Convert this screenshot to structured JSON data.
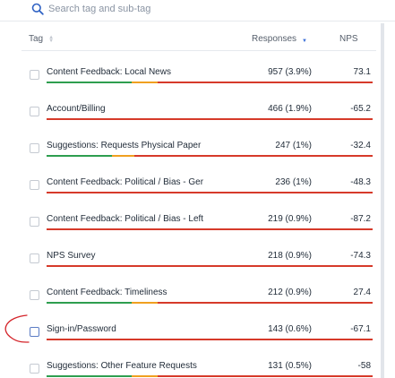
{
  "search": {
    "placeholder": "Search tag and sub-tag",
    "icon": "search-icon"
  },
  "table": {
    "columns": {
      "tag": "Tag",
      "responses": "Responses",
      "nps": "NPS"
    },
    "rows": [
      {
        "name": "Content Feedback: Local News",
        "responses": "957 (3.9%)",
        "nps": "73.1",
        "positive": 0.26,
        "neutral": 0.08,
        "negative": 0.66
      },
      {
        "name": "Account/Billing",
        "responses": "466 (1.9%)",
        "nps": "-65.2",
        "positive": 0.0,
        "neutral": 0.0,
        "negative": 1.0
      },
      {
        "name": "Suggestions: Requests Physical Paper",
        "responses": "247 (1%)",
        "nps": "-32.4",
        "positive": 0.2,
        "neutral": 0.07,
        "negative": 0.73
      },
      {
        "name": "Content Feedback: Political / Bias - Ger",
        "responses": "236 (1%)",
        "nps": "-48.3",
        "positive": 0.0,
        "neutral": 0.0,
        "negative": 1.0
      },
      {
        "name": "Content Feedback: Political / Bias - Left",
        "responses": "219 (0.9%)",
        "nps": "-87.2",
        "positive": 0.0,
        "neutral": 0.0,
        "negative": 1.0
      },
      {
        "name": "NPS Survey",
        "responses": "218 (0.9%)",
        "nps": "-74.3",
        "positive": 0.0,
        "neutral": 0.0,
        "negative": 1.0
      },
      {
        "name": "Content Feedback: Timeliness",
        "responses": "212 (0.9%)",
        "nps": "27.4",
        "positive": 0.26,
        "neutral": 0.08,
        "negative": 0.66
      },
      {
        "name": "Sign-in/Password",
        "responses": "143 (0.6%)",
        "nps": "-67.1",
        "positive": 0.0,
        "neutral": 0.0,
        "negative": 1.0
      },
      {
        "name": "Suggestions: Other Feature Requests",
        "responses": "131 (0.5%)",
        "nps": "-58",
        "positive": 0.26,
        "neutral": 0.08,
        "negative": 0.66
      }
    ]
  },
  "colors": {
    "positive": "#2e9e4f",
    "neutral": "#f0a020",
    "negative": "#d63a2a",
    "annotation": "#d4242a",
    "sort_active": "#3b6fd8"
  }
}
